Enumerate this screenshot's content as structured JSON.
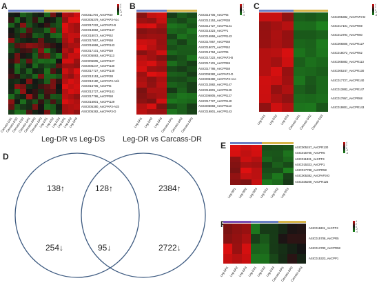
{
  "panels": {
    "A": {
      "letter": "A",
      "rows": [
        "ASIC011794_AeCPR60",
        "ASIC005379_AeCPAP3-A1c",
        "ASIC017222_AeCPAP3-B",
        "ASIC013882_AeCPR147",
        "ASIC018072_AeCPR62",
        "ASIC017867_AeCPR68",
        "ASIC016869_AeCPR143",
        "ASIC017101_AeCPR59",
        "ASIC005883_AeCPR113",
        "ASIC006805_AeCPR127",
        "ASIC005247_AeCPR130",
        "ASIC017727_AeCPR140",
        "ASIC013153_AeCPR38",
        "ASIC010180_AeCPAP3-A1b",
        "ASIC015705_AeCPR5",
        "ASIC012727_AeCPR141",
        "ASIC017786_AeCPR58",
        "ASIC016801_AeCPR129",
        "ASIC005380_AeCPAP3-A1b",
        "ASIC005382_AeCPAP3-D"
      ],
      "cols": [
        "Carcass-DS1",
        "Carcass-DS2",
        "Carcass-DS3",
        "Carcass-DR1",
        "Carcass-DR2",
        "Carcass-DR3",
        "Leg-DS1",
        "Leg-DS2",
        "Leg-DS3",
        "Leg-DR1",
        "Leg-DR2",
        "Leg-DR3"
      ]
    },
    "B": {
      "letter": "B",
      "rows": [
        "ASIC015705_AeCPR5",
        "ASIC013153_AeCPR38",
        "ASIC012727_AeCPR141",
        "ASIC015323_AeCPP1",
        "ASIC016869_AeCPR143",
        "ASIC017867_AeCPR68",
        "ASIC018072_AeCPR62",
        "ASIC015794_AeCPR5",
        "ASIC017222_AeCPAP3-B",
        "ASIC017101_AeCPR59",
        "ASIC017786_AeCPR58",
        "ASIC005382_AeCPAP3-D",
        "ASIC005380_AeCPAP3-A1c",
        "ASIC013882_AeCPR147",
        "ASIC016801_AeCPR129",
        "ASIC006805_AeCPR127",
        "ASIC017727_AeCPR140",
        "ASIC005883_AeCPR113",
        "ASIC019801_AeCPR143"
      ],
      "cols": [
        "Leg-DR1",
        "Leg-DR2",
        "Leg-DR3",
        "Carcass-DR1",
        "Carcass-DR2",
        "Carcass-DR3"
      ]
    },
    "C": {
      "letter": "C",
      "rows": [
        "ASIC005382_AeCPAP3-D",
        "ASIC017101_AeCPR59",
        "ASIC013794_AeCPR60",
        "ASIC006805_AeCPR127",
        "ASIC018072_AeCPR62",
        "ASIC005883_AeCPR113",
        "ASIC005247_AeCPR130",
        "ASIC017727_AeCPR140",
        "ASIC013882_AeCPR147",
        "ASIC017867_AeCPR68",
        "ASIC019801_AeCPR143"
      ],
      "cols": [
        "Leg-DS1",
        "Leg-DS2",
        "Leg-DS3",
        "Carcass-DS1",
        "Carcass-DS2",
        "Carcass-DS3"
      ]
    },
    "E": {
      "letter": "E",
      "rows": [
        "ASIC005247_AeCPR130",
        "ASIC015705_AeCPR5",
        "ASIC011831_AeCPF3",
        "ASIC015323_AeCPP1",
        "ASIC017788_AeCPR58",
        "ASIC005382_AeCPAP3-D",
        "ASIC026208_AeCPR125"
      ],
      "cols": [
        "Leg-DR1",
        "Leg-DR2",
        "Leg-DR3",
        "Leg-DS1",
        "Leg-DS2",
        "Leg-DS3"
      ]
    },
    "F": {
      "letter": "F",
      "rows": [
        "ASIC011831_AeCPF3",
        "ASIC015708_AeCPR5",
        "ASIC013780_AeCPR58",
        "ASIC015323_AeCPP1"
      ],
      "cols": [
        "Leg-DR1",
        "Leg-DR2",
        "Leg-DR3",
        "Leg-DS1",
        "Leg-DS2",
        "Leg-DS3",
        "Carcass-DR1",
        "Carcass-DR2",
        "Carcass-DR3"
      ]
    }
  },
  "legend_ticks": [
    "4",
    "2",
    "0",
    "-2",
    "-4"
  ],
  "venn": {
    "letter": "D",
    "left_title": "Leg-DR vs Leg-DS",
    "right_title": "Leg-DR vs Carcass-DR",
    "left_up": "138↑",
    "left_down": "254↓",
    "mid_up": "128↑",
    "mid_down": "95↓",
    "right_up": "2384↑",
    "right_down": "2722↓"
  },
  "colors": {
    "red": "#e01010",
    "black": "#141414",
    "green": "#1f8f1f",
    "circle": "#3d5a80"
  }
}
